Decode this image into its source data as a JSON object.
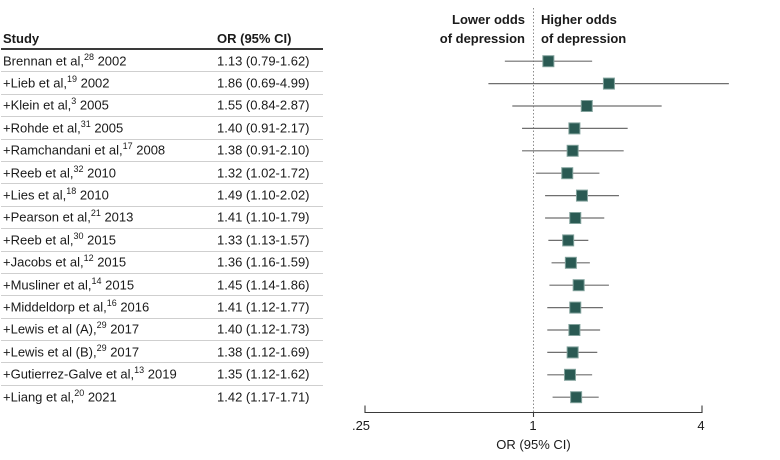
{
  "figure": {
    "table": {
      "col_study": "Study",
      "col_or": "OR (95% CI)"
    },
    "plot": {
      "left_annotation": [
        "Lower odds",
        "of depression"
      ],
      "right_annotation": [
        "Higher odds",
        "of depression"
      ],
      "xlabel": "OR (95% CI)"
    }
  },
  "chart_data": {
    "type": "scatter",
    "subtype": "forest-plot",
    "title": "",
    "xlabel": "OR (95% CI)",
    "x_scale": "log",
    "xlim": [
      0.25,
      4
    ],
    "null_line": 1,
    "grid": false,
    "xticks": [
      {
        "value": 0.25,
        "label": ".25"
      },
      {
        "value": 1,
        "label": "1"
      },
      {
        "value": 4,
        "label": "4"
      }
    ],
    "annotations": {
      "left_of_null": "Lower odds of depression",
      "right_of_null": "Higher odds of depression"
    },
    "studies": [
      {
        "label": "Brennan et al,",
        "ref": "28",
        "year": "2002",
        "or": 1.13,
        "lo": 0.79,
        "hi": 1.62,
        "or_text": "1.13 (0.79-1.62)"
      },
      {
        "label": "+Lieb et al,",
        "ref": "19",
        "year": "2002",
        "or": 1.86,
        "lo": 0.69,
        "hi": 4.99,
        "or_text": "1.86 (0.69-4.99)"
      },
      {
        "label": "+Klein et al,",
        "ref": "3",
        "year": "2005",
        "or": 1.55,
        "lo": 0.84,
        "hi": 2.87,
        "or_text": "1.55 (0.84-2.87)"
      },
      {
        "label": "+Rohde et al,",
        "ref": "31",
        "year": "2005",
        "or": 1.4,
        "lo": 0.91,
        "hi": 2.17,
        "or_text": "1.40 (0.91-2.17)"
      },
      {
        "label": "+Ramchandani et al,",
        "ref": "17",
        "year": "2008",
        "or": 1.38,
        "lo": 0.91,
        "hi": 2.1,
        "or_text": "1.38 (0.91-2.10)"
      },
      {
        "label": "+Reeb et al,",
        "ref": "32",
        "year": "2010",
        "or": 1.32,
        "lo": 1.02,
        "hi": 1.72,
        "or_text": "1.32 (1.02-1.72)"
      },
      {
        "label": "+Lies et al,",
        "ref": "18",
        "year": "2010",
        "or": 1.49,
        "lo": 1.1,
        "hi": 2.02,
        "or_text": "1.49 (1.10-2.02)"
      },
      {
        "label": "+Pearson et al,",
        "ref": "21",
        "year": "2013",
        "or": 1.41,
        "lo": 1.1,
        "hi": 1.79,
        "or_text": "1.41 (1.10-1.79)"
      },
      {
        "label": "+Reeb et al,",
        "ref": "30",
        "year": "2015",
        "or": 1.33,
        "lo": 1.13,
        "hi": 1.57,
        "or_text": "1.33 (1.13-1.57)"
      },
      {
        "label": "+Jacobs et al,",
        "ref": "12",
        "year": "2015",
        "or": 1.36,
        "lo": 1.16,
        "hi": 1.59,
        "or_text": "1.36 (1.16-1.59)"
      },
      {
        "label": "+Musliner et al,",
        "ref": "14",
        "year": "2015",
        "or": 1.45,
        "lo": 1.14,
        "hi": 1.86,
        "or_text": "1.45 (1.14-1.86)"
      },
      {
        "label": "+Middeldorp et al,",
        "ref": "16",
        "year": "2016",
        "or": 1.41,
        "lo": 1.12,
        "hi": 1.77,
        "or_text": "1.41 (1.12-1.77)"
      },
      {
        "label": "+Lewis et al (A),",
        "ref": "29",
        "year": "2017",
        "or": 1.4,
        "lo": 1.12,
        "hi": 1.73,
        "or_text": "1.40 (1.12-1.73)"
      },
      {
        "label": "+Lewis et al (B),",
        "ref": "29",
        "year": "2017",
        "or": 1.38,
        "lo": 1.12,
        "hi": 1.69,
        "or_text": "1.38 (1.12-1.69)"
      },
      {
        "label": "+Gutierrez-Galve et al,",
        "ref": "13",
        "year": "2019",
        "or": 1.35,
        "lo": 1.12,
        "hi": 1.62,
        "or_text": "1.35 (1.12-1.62)"
      },
      {
        "label": "+Liang et al,",
        "ref": "20",
        "year": "2021",
        "or": 1.42,
        "lo": 1.17,
        "hi": 1.71,
        "or_text": "1.42 (1.17-1.71)"
      }
    ],
    "colors": {
      "marker": "#2a5a53",
      "marker_edge": "#82a29c",
      "ci_line": "#6f6f6f",
      "axis": "#3a3a3a",
      "null_line": "#8c8c8c",
      "separator": "#cfcfcf",
      "header_rule": "#3a3a3a",
      "text": "#1a1a1a"
    }
  }
}
